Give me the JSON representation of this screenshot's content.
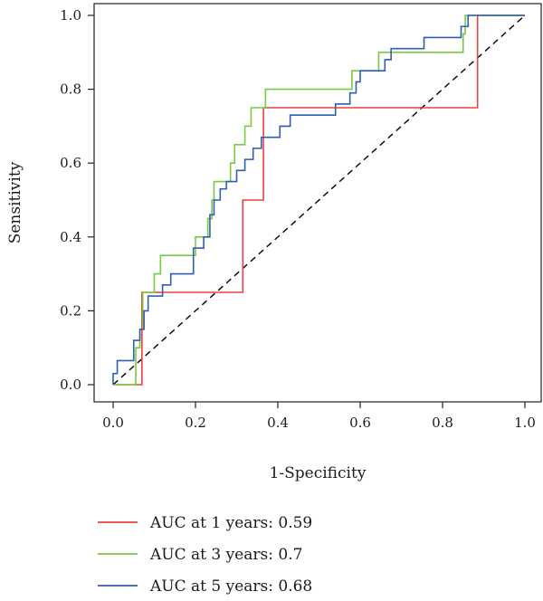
{
  "chart_data": {
    "type": "line",
    "title": "",
    "xlabel": "1-Specificity",
    "ylabel": "Sensitivity",
    "xlim": [
      0,
      1
    ],
    "ylim": [
      0,
      1
    ],
    "xticks": [
      "0.0",
      "0.2",
      "0.4",
      "0.6",
      "0.8",
      "1.0"
    ],
    "yticks": [
      "0.0",
      "0.2",
      "0.4",
      "0.6",
      "0.8",
      "1.0"
    ],
    "grid": false,
    "legend_position": "bottom",
    "diagonal": {
      "style": "dashed",
      "color": "#000000",
      "from": [
        0,
        0
      ],
      "to": [
        1,
        1
      ]
    },
    "series": [
      {
        "name": "AUC at 1 years: 0.59",
        "color": "#e8423f",
        "points": [
          [
            0,
            0
          ],
          [
            0.07,
            0
          ],
          [
            0.07,
            0.25
          ],
          [
            0.315,
            0.25
          ],
          [
            0.315,
            0.5
          ],
          [
            0.365,
            0.5
          ],
          [
            0.365,
            0.75
          ],
          [
            0.885,
            0.75
          ],
          [
            0.885,
            1.0
          ],
          [
            1.0,
            1.0
          ]
        ]
      },
      {
        "name": "AUC at 3 years: 0.7",
        "color": "#7ac943",
        "points": [
          [
            0,
            0
          ],
          [
            0.055,
            0
          ],
          [
            0.055,
            0.1
          ],
          [
            0.065,
            0.1
          ],
          [
            0.065,
            0.15
          ],
          [
            0.072,
            0.15
          ],
          [
            0.072,
            0.25
          ],
          [
            0.1,
            0.25
          ],
          [
            0.1,
            0.3
          ],
          [
            0.115,
            0.3
          ],
          [
            0.115,
            0.35
          ],
          [
            0.2,
            0.35
          ],
          [
            0.2,
            0.4
          ],
          [
            0.23,
            0.4
          ],
          [
            0.23,
            0.45
          ],
          [
            0.24,
            0.45
          ],
          [
            0.24,
            0.5
          ],
          [
            0.245,
            0.5
          ],
          [
            0.245,
            0.55
          ],
          [
            0.285,
            0.55
          ],
          [
            0.285,
            0.6
          ],
          [
            0.295,
            0.6
          ],
          [
            0.295,
            0.65
          ],
          [
            0.32,
            0.65
          ],
          [
            0.32,
            0.7
          ],
          [
            0.335,
            0.7
          ],
          [
            0.335,
            0.75
          ],
          [
            0.37,
            0.75
          ],
          [
            0.37,
            0.8
          ],
          [
            0.58,
            0.8
          ],
          [
            0.58,
            0.85
          ],
          [
            0.645,
            0.85
          ],
          [
            0.645,
            0.9
          ],
          [
            0.85,
            0.9
          ],
          [
            0.85,
            0.95
          ],
          [
            0.855,
            0.95
          ],
          [
            0.855,
            1.0
          ],
          [
            1.0,
            1.0
          ]
        ]
      },
      {
        "name": "AUC at 5 years: 0.68",
        "color": "#2e5fae",
        "points": [
          [
            0,
            0
          ],
          [
            0,
            0.03
          ],
          [
            0.01,
            0.03
          ],
          [
            0.01,
            0.065
          ],
          [
            0.05,
            0.065
          ],
          [
            0.05,
            0.12
          ],
          [
            0.065,
            0.12
          ],
          [
            0.065,
            0.15
          ],
          [
            0.075,
            0.15
          ],
          [
            0.075,
            0.2
          ],
          [
            0.085,
            0.2
          ],
          [
            0.085,
            0.24
          ],
          [
            0.12,
            0.24
          ],
          [
            0.12,
            0.27
          ],
          [
            0.14,
            0.27
          ],
          [
            0.14,
            0.3
          ],
          [
            0.195,
            0.3
          ],
          [
            0.195,
            0.37
          ],
          [
            0.22,
            0.37
          ],
          [
            0.22,
            0.4
          ],
          [
            0.235,
            0.4
          ],
          [
            0.235,
            0.46
          ],
          [
            0.245,
            0.46
          ],
          [
            0.245,
            0.5
          ],
          [
            0.26,
            0.5
          ],
          [
            0.26,
            0.53
          ],
          [
            0.275,
            0.53
          ],
          [
            0.275,
            0.55
          ],
          [
            0.3,
            0.55
          ],
          [
            0.3,
            0.58
          ],
          [
            0.32,
            0.58
          ],
          [
            0.32,
            0.61
          ],
          [
            0.34,
            0.61
          ],
          [
            0.34,
            0.64
          ],
          [
            0.36,
            0.64
          ],
          [
            0.36,
            0.67
          ],
          [
            0.405,
            0.67
          ],
          [
            0.405,
            0.7
          ],
          [
            0.43,
            0.7
          ],
          [
            0.43,
            0.73
          ],
          [
            0.54,
            0.73
          ],
          [
            0.54,
            0.76
          ],
          [
            0.575,
            0.76
          ],
          [
            0.575,
            0.79
          ],
          [
            0.59,
            0.79
          ],
          [
            0.59,
            0.82
          ],
          [
            0.6,
            0.82
          ],
          [
            0.6,
            0.85
          ],
          [
            0.66,
            0.85
          ],
          [
            0.66,
            0.88
          ],
          [
            0.675,
            0.88
          ],
          [
            0.675,
            0.91
          ],
          [
            0.755,
            0.91
          ],
          [
            0.755,
            0.94
          ],
          [
            0.845,
            0.94
          ],
          [
            0.845,
            0.97
          ],
          [
            0.862,
            0.97
          ],
          [
            0.862,
            1.0
          ],
          [
            1.0,
            1.0
          ]
        ]
      }
    ]
  }
}
